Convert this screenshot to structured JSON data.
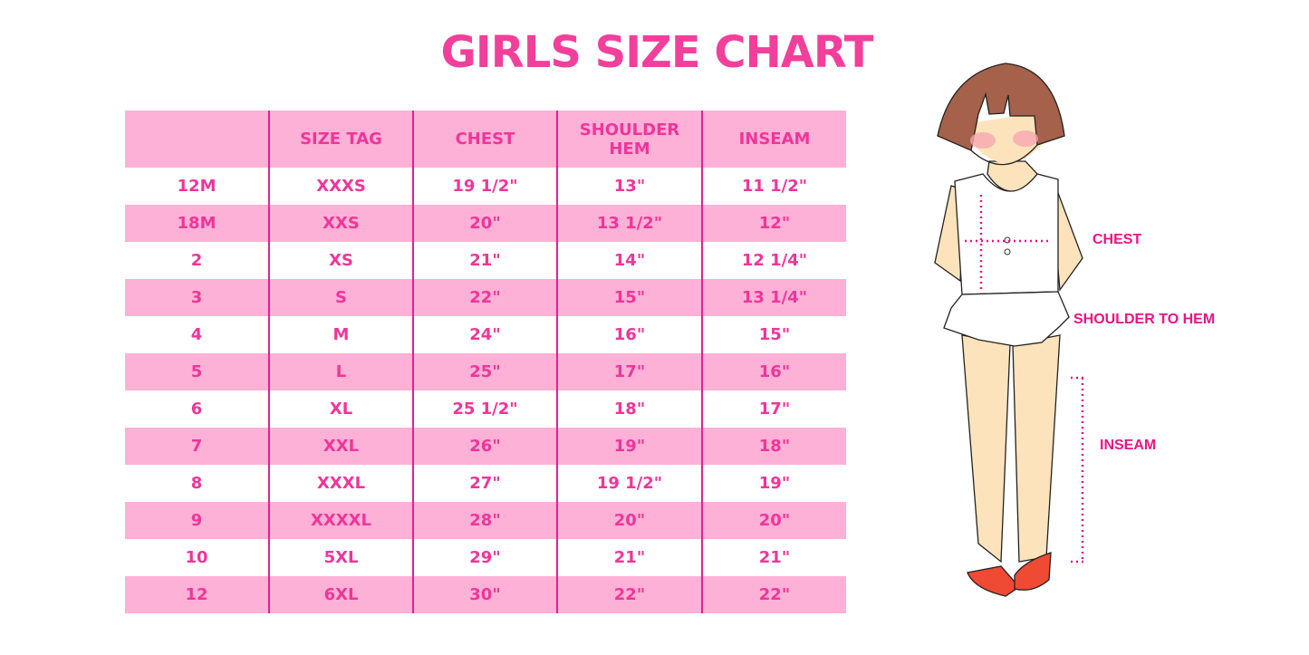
{
  "title": "GIRLS SIZE CHART",
  "table": {
    "headers": [
      "",
      "SIZE TAG",
      "CHEST",
      "SHOULDER HEM",
      "INSEAM"
    ],
    "rows": [
      [
        "12M",
        "XXXS",
        "19 1/2\"",
        "13\"",
        "11 1/2\""
      ],
      [
        "18M",
        "XXS",
        "20\"",
        "13 1/2\"",
        "12\""
      ],
      [
        "2",
        "XS",
        "21\"",
        "14\"",
        "12 1/4\""
      ],
      [
        "3",
        "S",
        "22\"",
        "15\"",
        "13 1/4\""
      ],
      [
        "4",
        "M",
        "24\"",
        "16\"",
        "15\""
      ],
      [
        "5",
        "L",
        "25\"",
        "17\"",
        "16\""
      ],
      [
        "6",
        "XL",
        "25 1/2\"",
        "18\"",
        "17\""
      ],
      [
        "7",
        "XXL",
        "26\"",
        "19\"",
        "18\""
      ],
      [
        "8",
        "XXXL",
        "27\"",
        "19 1/2\"",
        "19\""
      ],
      [
        "9",
        "XXXXL",
        "28\"",
        "20\"",
        "20\""
      ],
      [
        "10",
        "5XL",
        "29\"",
        "21\"",
        "21\""
      ],
      [
        "12",
        "6XL",
        "30\"",
        "22\"",
        "22\""
      ]
    ]
  },
  "figure": {
    "labels": {
      "chest": "CHEST",
      "shoulder": "SHOULDER TO HEM",
      "inseam": "INSEAM"
    }
  },
  "colors": {
    "accent": "#f0359a",
    "stripe": "#feb1d6",
    "divider": "#e81f8e"
  }
}
